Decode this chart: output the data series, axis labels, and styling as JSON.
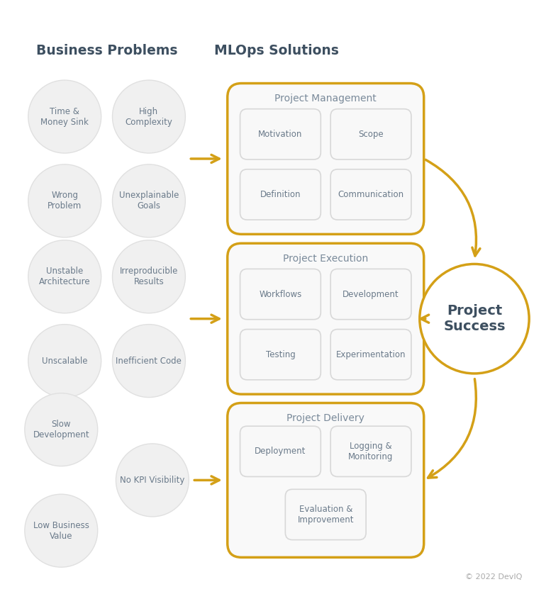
{
  "bg_color": "#ffffff",
  "gold_color": "#D4A017",
  "circle_fill": "#f0f0f0",
  "circle_edge": "#e0e0e0",
  "text_color": "#6a7a8a",
  "bold_text_color": "#3d4f60",
  "section_title_color": "#7a8a9a",
  "inner_box_fill": "#f8f8f8",
  "inner_box_edge": "#d8d8d8",
  "outer_box_fill": "#f9f9f9",
  "section_titles": [
    "Project Management",
    "Project Execution",
    "Project Delivery"
  ],
  "business_problems_title": "Business Problems",
  "mlops_solutions_title": "MLOps Solutions",
  "project_success_label": "Project\nSuccess",
  "copyright": "© 2022 DevIQ",
  "bp_row1_top": [
    "Time &\nMoney Sink",
    "High\nComplexity"
  ],
  "bp_row1_bot": [
    "Wrong\nProblem",
    "Unexplainable\nGoals"
  ],
  "bp_row2_top": [
    "Unstable\nArchitecture",
    "Irreproducible\nResults"
  ],
  "bp_row2_bot": [
    "Unscalable",
    "Inefficient Code"
  ],
  "bp_row3_a": "Slow\nDevelopment",
  "bp_row3_b": "No KPI Visibility",
  "bp_row3_c": "Low Business\nValue",
  "sol_row1": [
    [
      "Motivation",
      "Scope"
    ],
    [
      "Definition",
      "Communication"
    ]
  ],
  "sol_row2": [
    [
      "Workflows",
      "Development"
    ],
    [
      "Testing",
      "Experimentation"
    ]
  ],
  "sol_row3_top": [
    "Deployment",
    "Logging &\nMonitoring"
  ],
  "sol_row3_bot": "Evaluation &\nImprovement"
}
